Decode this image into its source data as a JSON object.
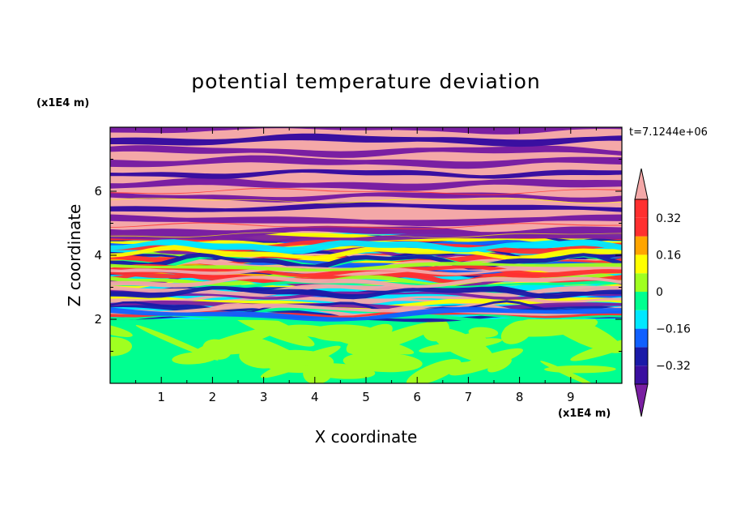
{
  "chart_data": {
    "type": "heatmap",
    "title": "potential temperature deviation",
    "xlabel": "X coordinate",
    "ylabel": "Z coordinate",
    "x_unit": "(x1E4 m)",
    "y_unit": "(x1E4 m)",
    "time_label": "t=7.1244e+06",
    "xlim": [
      0,
      10
    ],
    "ylim": [
      0,
      8
    ],
    "x_ticks": [
      1,
      2,
      3,
      4,
      5,
      6,
      7,
      8,
      9
    ],
    "y_ticks": [
      2,
      4,
      6
    ],
    "colorbar": {
      "levels": [
        -0.4,
        -0.32,
        -0.24,
        -0.16,
        -0.08,
        0,
        0.08,
        0.16,
        0.24,
        0.32,
        0.4
      ],
      "tick_labels": [
        "0.32",
        "0.16",
        "0",
        "−0.16",
        "−0.32"
      ],
      "tick_values": [
        0.32,
        0.16,
        0,
        -0.16,
        -0.32
      ],
      "colors": [
        "#7a1fa2",
        "#3a0fa0",
        "#1a1aa8",
        "#1060ff",
        "#00e8ff",
        "#00ff90",
        "#a0ff20",
        "#ffff00",
        "#ffa500",
        "#ff3030",
        "#f4a8a8"
      ],
      "extend": "both"
    },
    "layers": [
      {
        "zmin": 7.7,
        "zmax": 8.0,
        "pattern": "stripes"
      },
      {
        "zmin": 4.7,
        "zmax": 7.7,
        "pattern": "stripes-pink-purple"
      },
      {
        "zmin": 2.0,
        "zmax": 4.7,
        "pattern": "turbulent-mixed"
      },
      {
        "zmin": 0.0,
        "zmax": 2.0,
        "pattern": "green-lime-blobs"
      }
    ]
  }
}
